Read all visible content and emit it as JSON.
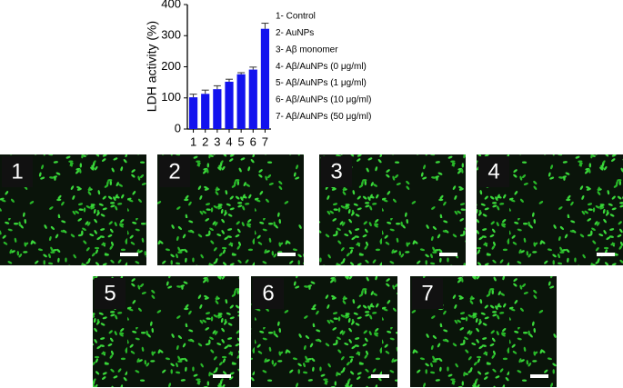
{
  "chart_data": {
    "type": "bar",
    "ylabel": "LDH activity (%)",
    "categories": [
      "1",
      "2",
      "3",
      "4",
      "5",
      "6",
      "7"
    ],
    "values": [
      102,
      113,
      128,
      152,
      176,
      191,
      322
    ],
    "errors": [
      10,
      12,
      11,
      8,
      5,
      8,
      18
    ],
    "color": "#1212ee",
    "ylim": [
      0,
      400
    ],
    "yticks": [
      0,
      100,
      200,
      300,
      400
    ],
    "legend": [
      "1- Control",
      "2- AuNPs",
      "3- Aβ monomer",
      "4- Aβ/AuNPs (0 μg/ml)",
      "5- Aβ/AuNPs (1 μg/ml)",
      "6- Aβ/AuNPs (10 μg/ml)",
      "7- Aβ/AuNPs (50 μg/ml)"
    ]
  },
  "panels": [
    "1",
    "2",
    "3",
    "4",
    "5",
    "6",
    "7"
  ]
}
